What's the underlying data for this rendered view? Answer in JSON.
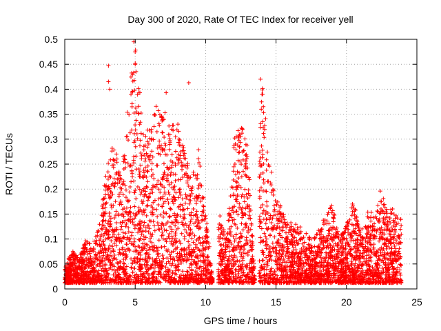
{
  "chart_data": {
    "type": "scatter",
    "title": "Day 300 of 2020, Rate Of TEC Index for receiver yell",
    "xlabel": "GPS time / hours",
    "ylabel": "ROTI / TECUs",
    "xlim": [
      0,
      25
    ],
    "ylim": [
      0,
      0.5
    ],
    "xticks": [
      0,
      5,
      10,
      15,
      20,
      25
    ],
    "yticks": [
      0,
      0.05,
      0.1,
      0.15,
      0.2,
      0.25,
      0.3,
      0.35,
      0.4,
      0.45,
      0.5
    ],
    "grid": true,
    "marker": "+",
    "color": "#ff0000",
    "envelope": {
      "description": "approximate upper envelope of the dense point cloud (hours, ROTI)",
      "x": [
        0.0,
        0.5,
        1.0,
        1.5,
        2.0,
        2.5,
        3.0,
        3.5,
        4.0,
        4.5,
        5.0,
        5.5,
        6.0,
        6.5,
        7.0,
        7.5,
        8.0,
        8.5,
        9.0,
        9.5,
        10.0,
        10.5,
        11.0,
        11.5,
        12.0,
        12.5,
        13.0,
        13.5,
        14.0,
        14.5,
        15.0,
        15.5,
        16.0,
        16.5,
        17.0,
        17.5,
        18.0,
        18.5,
        19.0,
        19.5,
        20.0,
        20.5,
        21.0,
        21.5,
        22.0,
        22.5,
        23.0,
        23.5,
        23.9
      ],
      "y": [
        0.04,
        0.08,
        0.06,
        0.1,
        0.09,
        0.14,
        0.25,
        0.3,
        0.22,
        0.38,
        0.5,
        0.35,
        0.32,
        0.37,
        0.36,
        0.33,
        0.34,
        0.28,
        0.22,
        0.28,
        0.16,
        0.02,
        0.15,
        0.1,
        0.3,
        0.33,
        0.29,
        0.02,
        0.42,
        0.27,
        0.18,
        0.16,
        0.14,
        0.13,
        0.12,
        0.1,
        0.12,
        0.15,
        0.17,
        0.1,
        0.13,
        0.18,
        0.12,
        0.16,
        0.15,
        0.19,
        0.16,
        0.17,
        0.14
      ]
    },
    "outliers": {
      "x": [
        3.1,
        3.1,
        3.2,
        4.7,
        4.9,
        5.0,
        5.0,
        7.2,
        8.8,
        13.9,
        14.0,
        14.1,
        22.4
      ],
      "y": [
        0.447,
        0.415,
        0.4,
        0.39,
        0.495,
        0.475,
        0.45,
        0.393,
        0.413,
        0.42,
        0.39,
        0.365,
        0.196
      ]
    },
    "gaps_hours": [
      [
        10.5,
        10.9
      ],
      [
        13.5,
        13.8
      ]
    ]
  }
}
